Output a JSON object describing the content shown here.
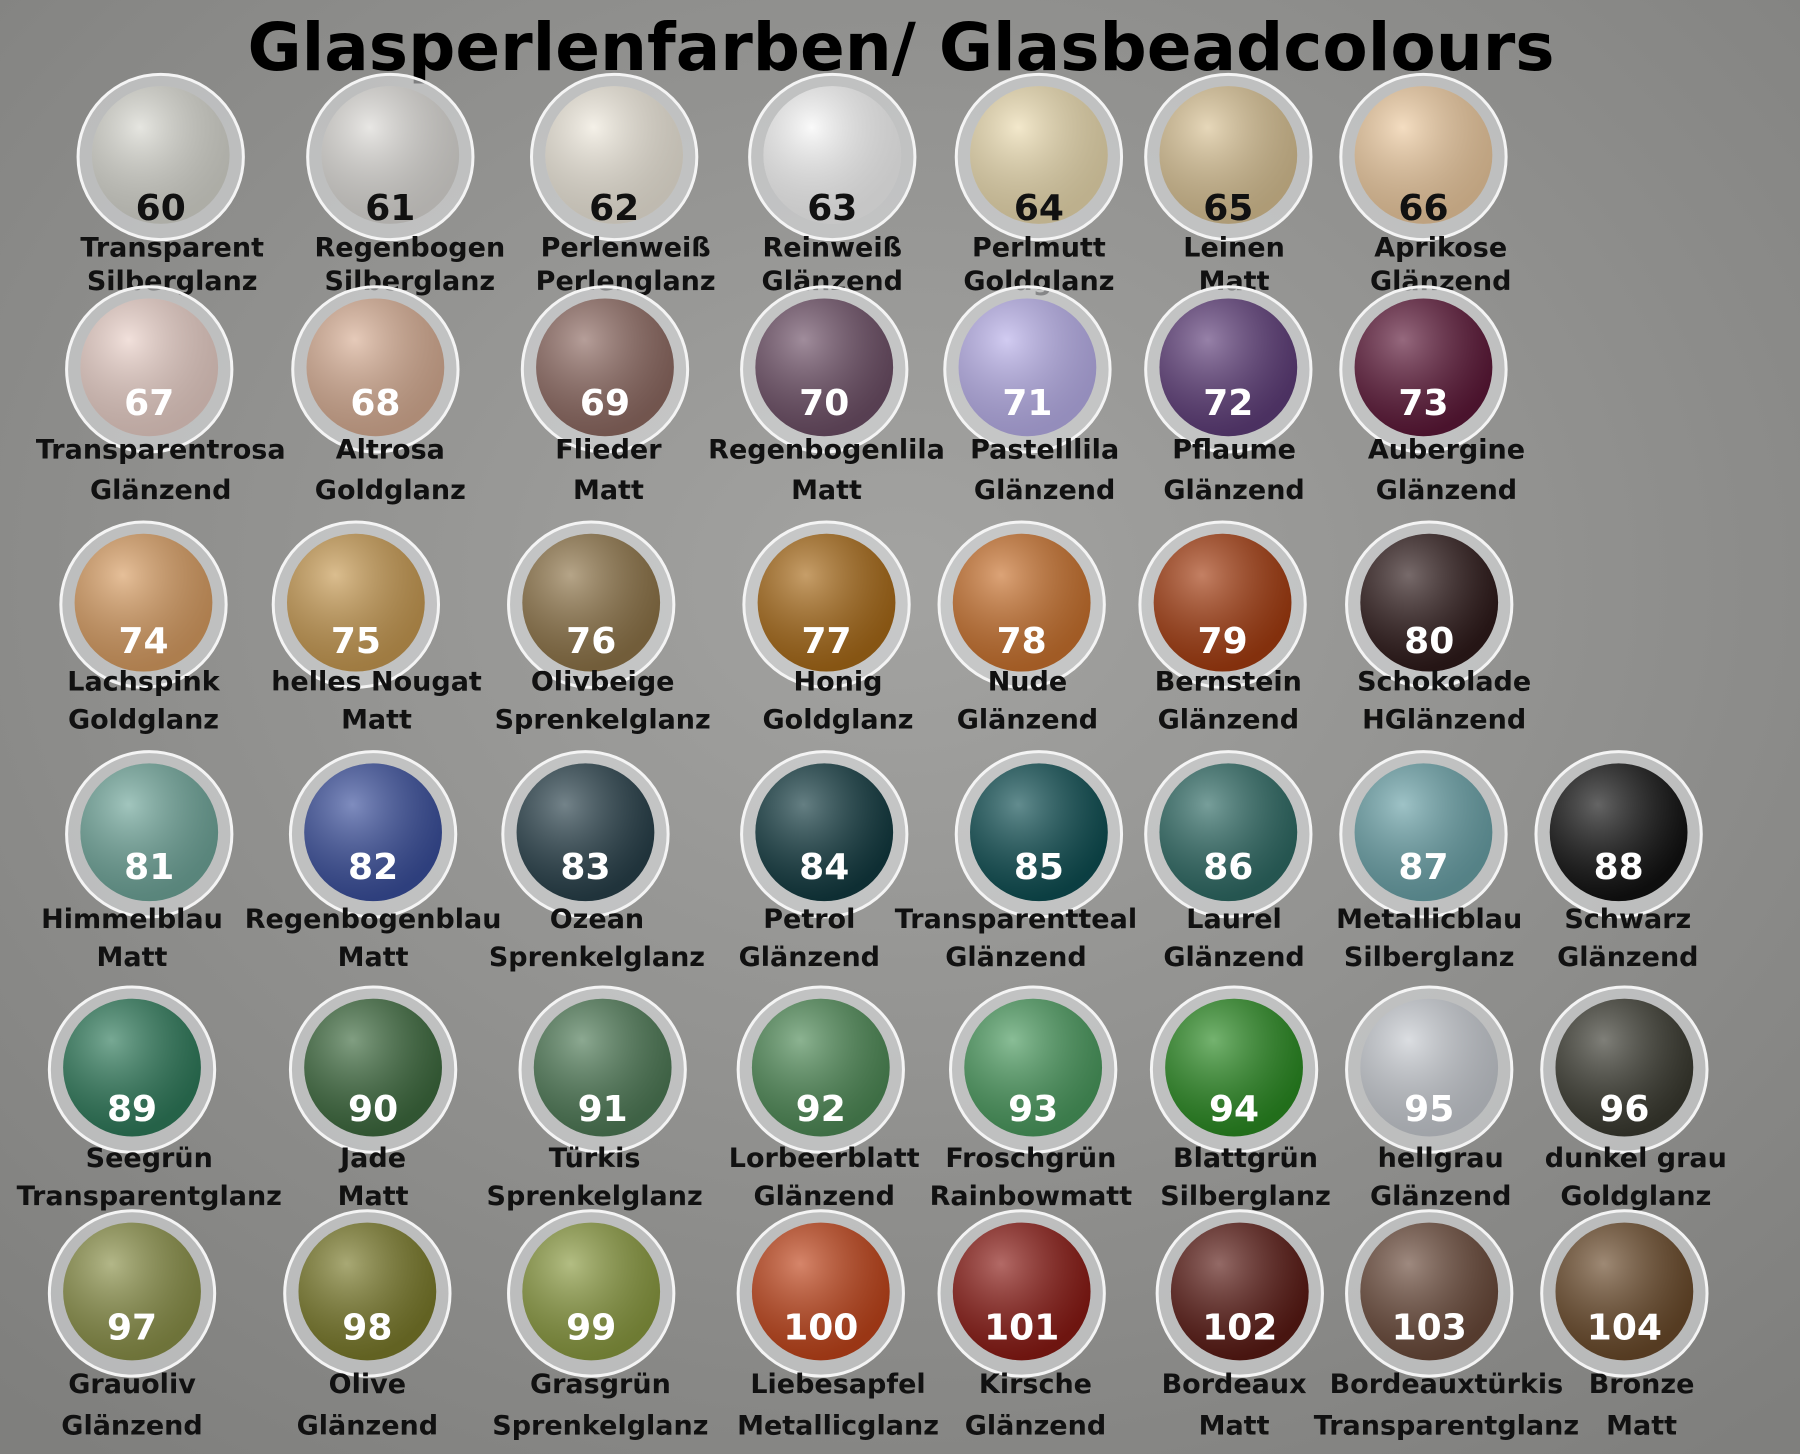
{
  "title": "Glasperlenfarben/ Glasbeadcolours",
  "rows": [
    [
      {
        "number": "60",
        "name": "Transparent",
        "finish": "Silberglanz",
        "color": "#d8d8d0"
      },
      {
        "number": "61",
        "name": "Regenbogen",
        "finish": "Silberglanz",
        "color": "#dcdad6"
      },
      {
        "number": "62",
        "name": "Perlenweiß",
        "finish": "Perlenglanz",
        "color": "#efe9dc"
      },
      {
        "number": "63",
        "name": "Reinweiß",
        "finish": "Glänzend",
        "color": "#f7f7f7"
      },
      {
        "number": "64",
        "name": "Perlmutt",
        "finish": "Goldglanz",
        "color": "#ecdcb0"
      },
      {
        "number": "65",
        "name": "Leinen",
        "finish": "Matt",
        "color": "#d9c294"
      },
      {
        "number": "66",
        "name": "Aprikose",
        "finish": "Glänzend",
        "color": "#eecba0"
      }
    ],
    [
      {
        "number": "67",
        "name": "Transparentrosa",
        "finish": "Glänzend",
        "color": "#ead0c8"
      },
      {
        "number": "68",
        "name": "Altrosa",
        "finish": "Goldglanz",
        "color": "#d8ae94"
      },
      {
        "number": "69",
        "name": "Flieder",
        "finish": "Matt",
        "color": "#8e6a62"
      },
      {
        "number": "70",
        "name": "Regenbogenlila",
        "finish": "Matt",
        "color": "#6d4f66"
      },
      {
        "number": "71",
        "name": "Pastelllila",
        "finish": "Glänzend",
        "color": "#b9b0ea"
      },
      {
        "number": "72",
        "name": "Pflaume",
        "finish": "Glänzend",
        "color": "#5e3d79"
      },
      {
        "number": "73",
        "name": "Aubergine",
        "finish": "Glänzend",
        "color": "#5d1838"
      }
    ],
    [
      {
        "number": "74",
        "name": "Lachspink",
        "finish": "Goldglanz",
        "color": "#d89d62"
      },
      {
        "number": "75",
        "name": "helles Nougat",
        "finish": "Matt",
        "color": "#c79a52"
      },
      {
        "number": "76",
        "name": "Olivbeige",
        "finish": "Sprenkelglanz",
        "color": "#8e7448"
      },
      {
        "number": "77",
        "name": "Honig",
        "finish": "Goldglanz",
        "color": "#a86a18"
      },
      {
        "number": "78",
        "name": "Nude",
        "finish": "Glänzend",
        "color": "#c9722e"
      },
      {
        "number": "79",
        "name": "Bernstein",
        "finish": "Glänzend",
        "color": "#a43c10"
      },
      {
        "number": "80",
        "name": "Schokolade",
        "finish": "HGlänzend",
        "color": "#2e1a1a"
      }
    ],
    [
      {
        "number": "81",
        "name": "Himmelblau",
        "finish": "Matt",
        "color": "#6fa69a"
      },
      {
        "number": "82",
        "name": "Regenbogenblau",
        "finish": "Matt",
        "color": "#3a4f9c"
      },
      {
        "number": "83",
        "name": "Ozean",
        "finish": "Sprenkelglanz",
        "color": "#28404a"
      },
      {
        "number": "84",
        "name": "Petrol",
        "finish": "Glänzend",
        "color": "#123a40"
      },
      {
        "number": "85",
        "name": "Transparentteal",
        "finish": "Glänzend",
        "color": "#0e4e52"
      },
      {
        "number": "86",
        "name": "Laurel",
        "finish": "Glänzend",
        "color": "#2e6a64"
      },
      {
        "number": "87",
        "name": "Metallicblau",
        "finish": "Silberglanz",
        "color": "#6aa2a8"
      },
      {
        "number": "88",
        "name": "Schwarz",
        "finish": "Glänzend",
        "color": "#111111"
      }
    ],
    [
      {
        "number": "89",
        "name": "Seegrün",
        "finish": "Transparentglanz",
        "color": "#2e7a5a"
      },
      {
        "number": "90",
        "name": "Jade",
        "finish": "Matt",
        "color": "#3d6a3e"
      },
      {
        "number": "91",
        "name": "Türkis",
        "finish": "Sprenkelglanz",
        "color": "#4e7a56"
      },
      {
        "number": "92",
        "name": "Lorbeerblatt",
        "finish": "Glänzend",
        "color": "#4e8a56"
      },
      {
        "number": "93",
        "name": "Froschgrün",
        "finish": "Rainbowmatt",
        "color": "#4a9a5e"
      },
      {
        "number": "94",
        "name": "Blattgrün",
        "finish": "Silberglanz",
        "color": "#2a8a22"
      },
      {
        "number": "95",
        "name": "hellgrau",
        "finish": "Glänzend",
        "color": "#c8ccd2"
      },
      {
        "number": "96",
        "name": "dunkel grau",
        "finish": "Goldglanz",
        "color": "#3a3a30"
      }
    ],
    [
      {
        "number": "97",
        "name": "Grauoliv",
        "finish": "Glänzend",
        "color": "#8a9048"
      },
      {
        "number": "98",
        "name": "Olive",
        "finish": "Glänzend",
        "color": "#7a7a2a"
      },
      {
        "number": "99",
        "name": "Grasgrün",
        "finish": "Sprenkelglanz",
        "color": "#8a9a40"
      },
      {
        "number": "100",
        "name": "Liebesapfel",
        "finish": "Metallicglanz",
        "color": "#c0441a"
      },
      {
        "number": "101",
        "name": "Kirsche",
        "finish": "Glänzend",
        "color": "#8a1a14"
      },
      {
        "number": "102",
        "name": "Bordeaux",
        "finish": "Matt",
        "color": "#5a1a14"
      },
      {
        "number": "103",
        "name": "Bordeauxtürkis",
        "finish": "Transparentglanz",
        "color": "#6a4a3a"
      },
      {
        "number": "104",
        "name": "Bronze",
        "finish": "Matt",
        "color": "#6a4a2a"
      }
    ]
  ]
}
